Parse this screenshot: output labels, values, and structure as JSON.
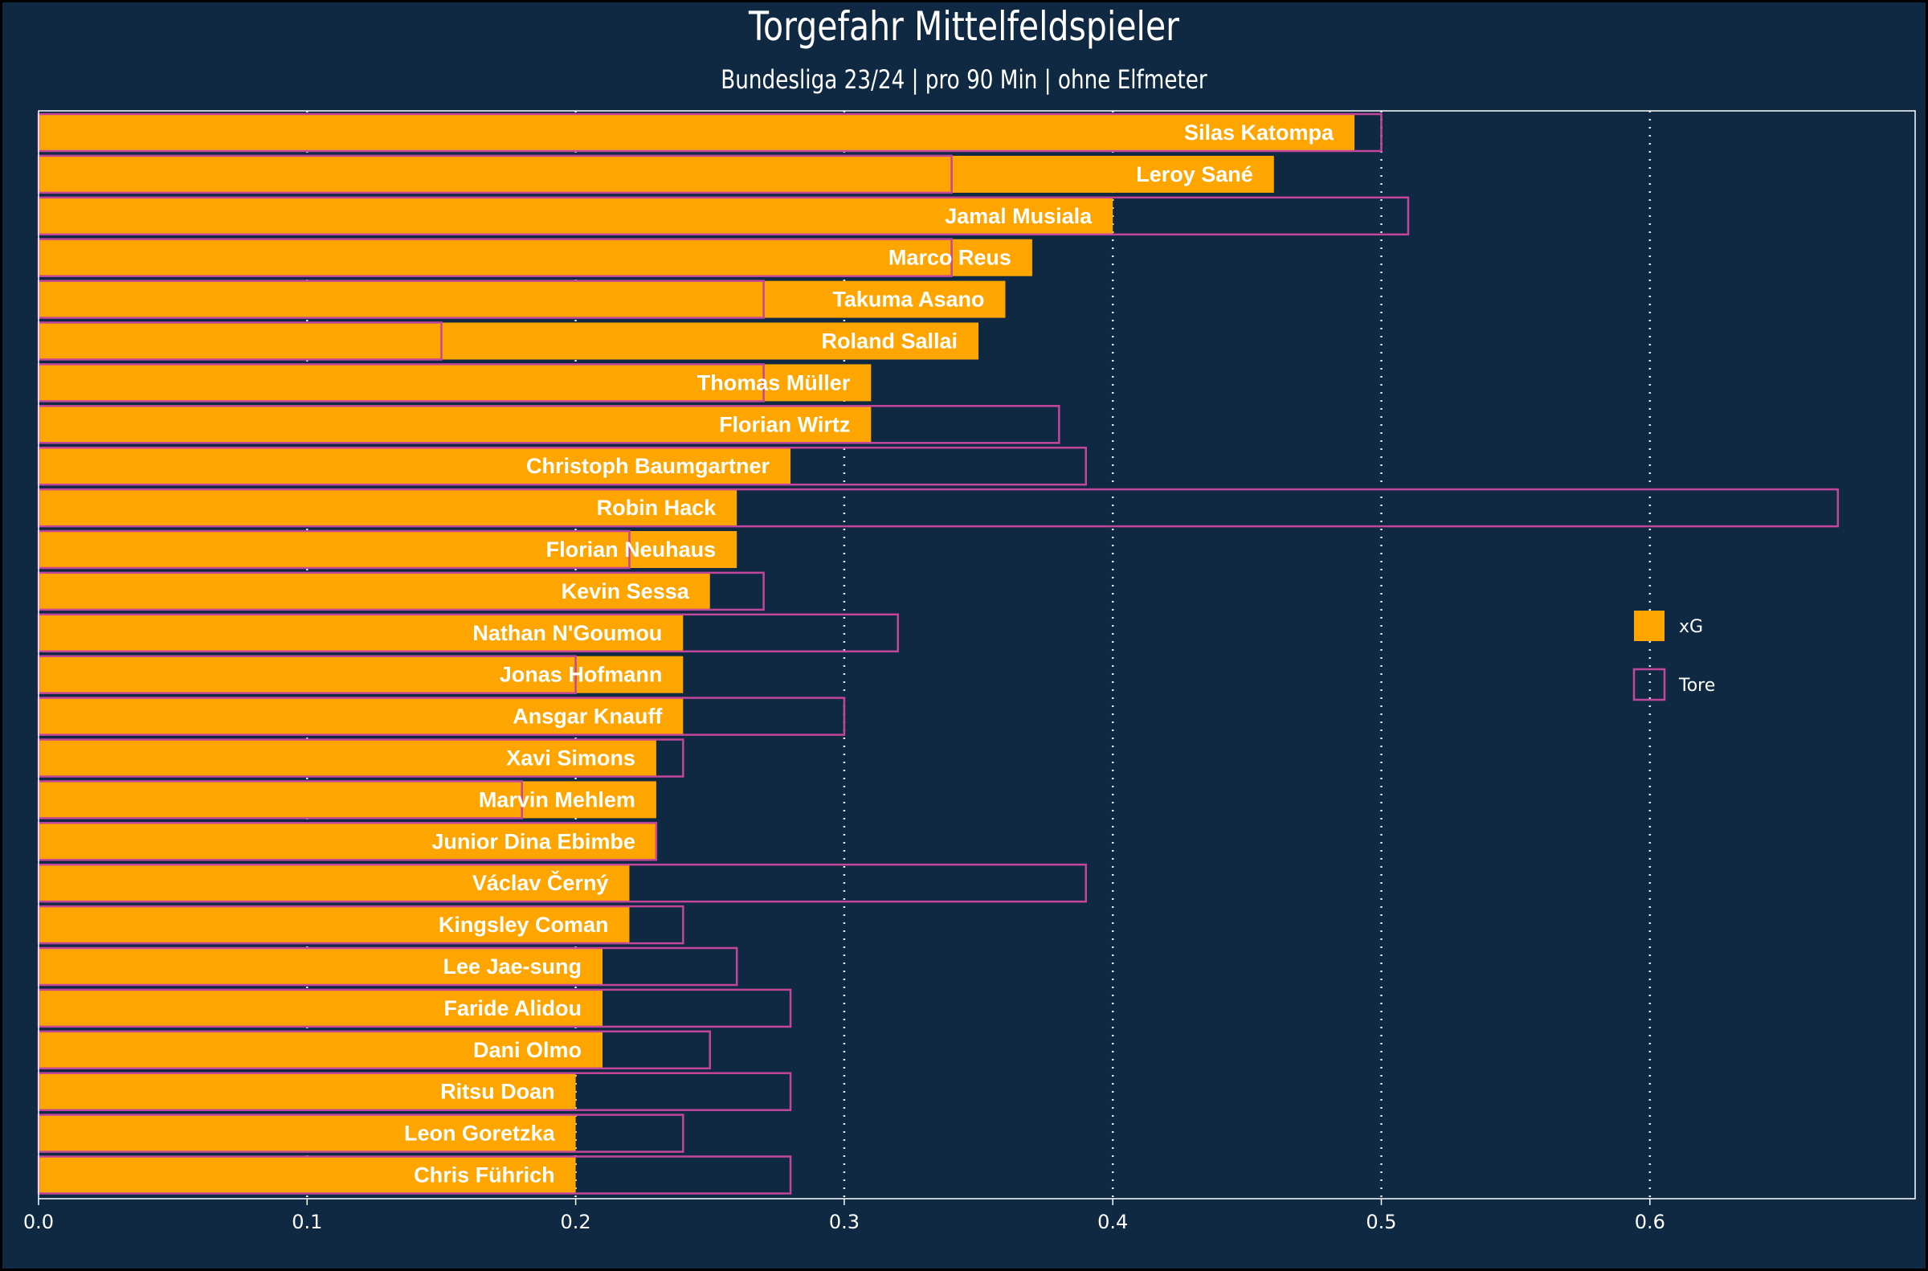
{
  "chart_data": {
    "type": "bar",
    "orientation": "horizontal",
    "title": "Torgefahr Mittelfeldspieler",
    "subtitle": "Bundesliga 23/24 | pro 90 Min | ohne Elfmeter",
    "xlabel": "",
    "ylabel": "",
    "xlim": [
      0,
      0.7
    ],
    "xticks": [
      "0.0",
      "0.1",
      "0.2",
      "0.3",
      "0.4",
      "0.5",
      "0.6"
    ],
    "grid": "vertical dotted",
    "legend_position": "right",
    "categories": [
      "Silas Katompa",
      "Leroy Sané",
      "Jamal Musiala",
      "Marco Reus",
      "Takuma Asano",
      "Roland Sallai",
      "Thomas Müller",
      "Florian Wirtz",
      "Christoph Baumgartner",
      "Robin Hack",
      "Florian Neuhaus",
      "Kevin Sessa",
      "Nathan N'Goumou",
      "Jonas Hofmann",
      "Ansgar Knauff",
      "Xavi Simons",
      "Marvin Mehlem",
      "Junior Dina Ebimbe",
      "Václav Černý",
      "Kingsley Coman",
      "Lee Jae-sung",
      "Faride Alidou",
      "Dani Olmo",
      "Ritsu Doan",
      "Leon Goretzka",
      "Chris Führich"
    ],
    "series": [
      {
        "name": "xG",
        "color": "#ffa500",
        "values": [
          0.49,
          0.46,
          0.4,
          0.37,
          0.36,
          0.35,
          0.31,
          0.31,
          0.28,
          0.26,
          0.26,
          0.25,
          0.24,
          0.24,
          0.24,
          0.23,
          0.23,
          0.23,
          0.22,
          0.22,
          0.21,
          0.21,
          0.21,
          0.2,
          0.2,
          0.2
        ]
      },
      {
        "name": "Tore",
        "color": "#c2479b",
        "values": [
          0.5,
          0.34,
          0.51,
          0.34,
          0.27,
          0.15,
          0.27,
          0.38,
          0.39,
          0.67,
          0.22,
          0.27,
          0.32,
          0.2,
          0.3,
          0.24,
          0.18,
          0.23,
          0.39,
          0.24,
          0.26,
          0.28,
          0.25,
          0.28,
          0.24,
          0.28
        ]
      }
    ]
  },
  "colors": {
    "background": "#0f2942",
    "xg_fill": "#ffa500",
    "tore_outline": "#c2479b",
    "text": "#ffffff"
  }
}
